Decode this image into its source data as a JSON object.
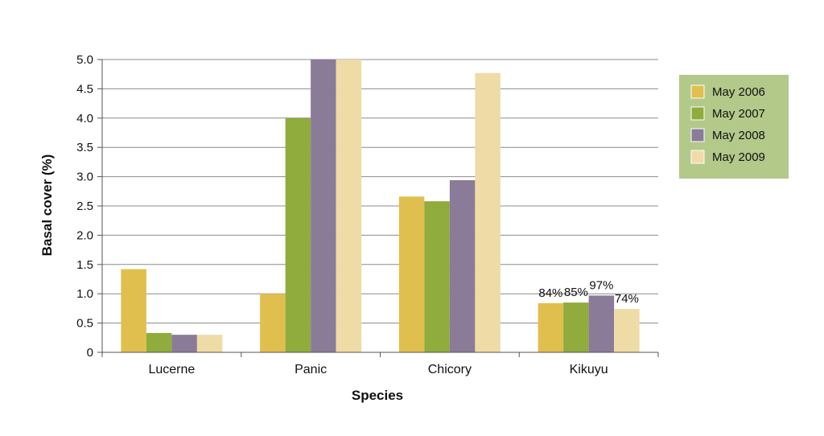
{
  "chart_data": {
    "type": "bar",
    "xlabel": "Species",
    "ylabel": "Basal cover (%)",
    "categories": [
      "Lucerne",
      "Panic",
      "Chicory",
      "Kikuyu"
    ],
    "ylim": [
      0,
      5.0
    ],
    "yticks": [
      "0",
      "0.5",
      "1.0",
      "1.5",
      "2.0",
      "2.5",
      "3.0",
      "3.5",
      "4.0",
      "4.5",
      "5.0"
    ],
    "grid": true,
    "legend_position": "right",
    "series": [
      {
        "name": "May 2006",
        "color": "#e0bf4f",
        "values": [
          1.42,
          1.0,
          2.66,
          0.84
        ]
      },
      {
        "name": "May 2007",
        "color": "#8fac3c",
        "values": [
          0.33,
          4.0,
          2.58,
          0.85
        ]
      },
      {
        "name": "May 2008",
        "color": "#8a7b99",
        "values": [
          0.3,
          5.0,
          2.94,
          0.97
        ]
      },
      {
        "name": "May 2009",
        "color": "#efdba6",
        "values": [
          0.3,
          5.0,
          4.77,
          0.74
        ]
      }
    ],
    "data_labels": [
      {
        "category": "Kikuyu",
        "series": "May 2006",
        "text": "84%"
      },
      {
        "category": "Kikuyu",
        "series": "May 2007",
        "text": "85%"
      },
      {
        "category": "Kikuyu",
        "series": "May 2008",
        "text": "97%"
      },
      {
        "category": "Kikuyu",
        "series": "May 2009",
        "text": "74%"
      }
    ],
    "legend_background": "#b2c98a"
  }
}
